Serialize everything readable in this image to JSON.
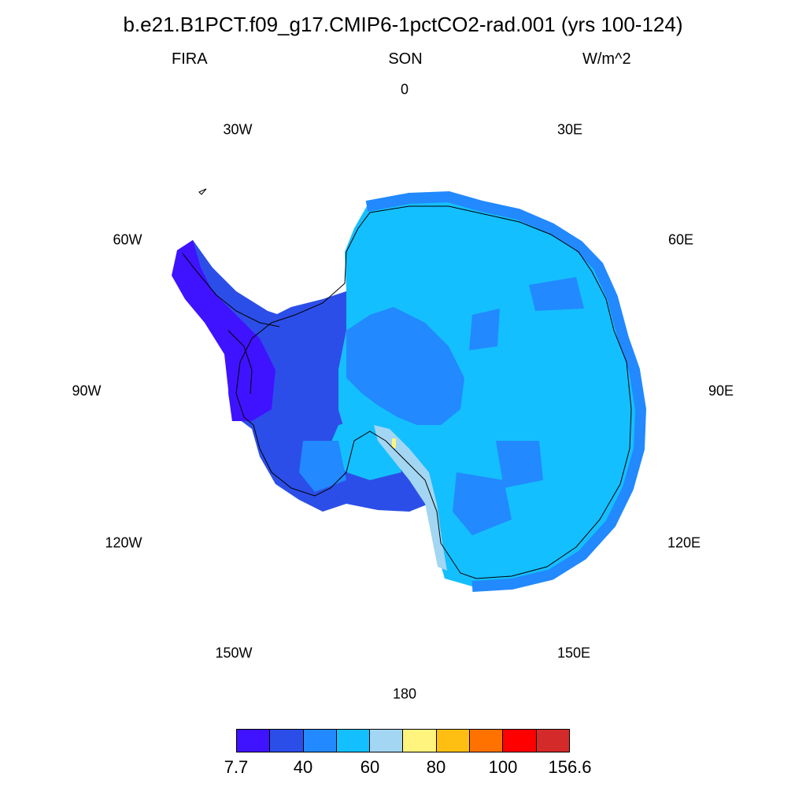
{
  "title": "b.e21.B1PCT.f09_g17.CMIP6-1pctCO2-rad.001 (yrs 100-124)",
  "variable": "FIRA",
  "season": "SON",
  "units": "W/m^2",
  "longitude_labels": [
    "0",
    "30E",
    "60E",
    "90E",
    "120E",
    "150E",
    "180",
    "150W",
    "120W",
    "90W",
    "60W",
    "30W"
  ],
  "colorbar": {
    "colors": [
      "#3f13ff",
      "#2c4ee8",
      "#2289ff",
      "#14bfff",
      "#a3d6f2",
      "#fff47e",
      "#ffbf12",
      "#ff7200",
      "#ff0000",
      "#d42a2a"
    ],
    "labels": [
      "7.7",
      "40",
      "60",
      "80",
      "100",
      "156.6"
    ]
  },
  "map_colors": {
    "coast": "#000000",
    "dominant": "#14bfff",
    "interior": "#2289ff",
    "west": "#2c4ee8",
    "peninsula": "#3f13ff",
    "ice_shelf": "#a3d6f2",
    "hotspot": "#fff47e"
  }
}
